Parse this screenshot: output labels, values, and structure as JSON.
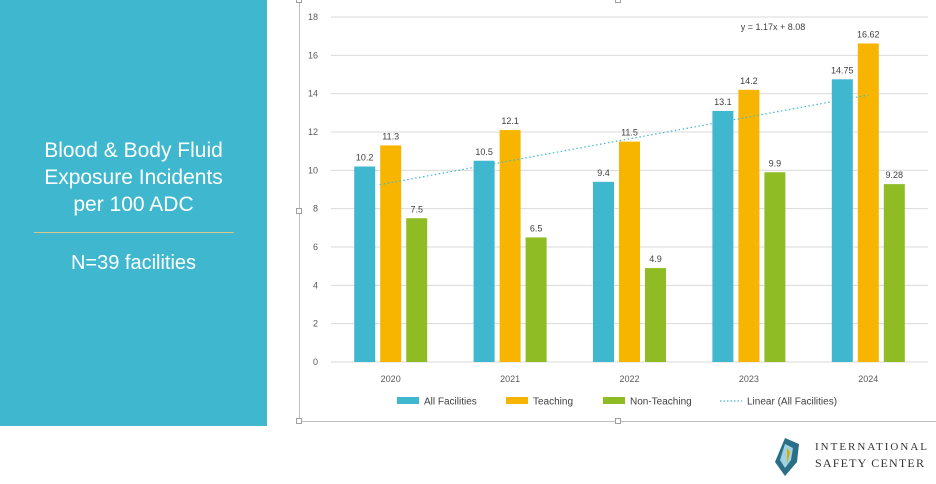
{
  "panel": {
    "title": "Blood & Body Fluid\nExposure Incidents\nper 100 ADC",
    "subtitle": "N=39 facilities"
  },
  "logo": {
    "line1": "INTERNATIONAL",
    "line2": "SAFETY CENTER",
    "icon": "shield-logo-icon"
  },
  "colors": {
    "panel": "#3fb8cf",
    "all": "#3fb8cf",
    "teaching": "#f7b500",
    "nonteaching": "#8fbc24",
    "trend": "#3fb8cf"
  },
  "chart_data": {
    "type": "bar",
    "categories": [
      "2020",
      "2021",
      "2022",
      "2023",
      "2024"
    ],
    "series": [
      {
        "name": "All Facilities",
        "values": [
          10.2,
          10.5,
          9.4,
          13.1,
          14.75
        ],
        "labels": [
          "10.2",
          "10.5",
          "9.4",
          "13.1",
          "14.75"
        ]
      },
      {
        "name": "Teaching",
        "values": [
          11.3,
          12.1,
          11.5,
          14.2,
          16.62
        ],
        "labels": [
          "11.3",
          "12.1",
          "11.5",
          "14.2",
          "16.62"
        ]
      },
      {
        "name": "Non-Teaching",
        "values": [
          7.5,
          6.5,
          4.9,
          9.9,
          9.28
        ],
        "labels": [
          "7.5",
          "6.5",
          "4.9",
          "9.9",
          "9.28"
        ]
      }
    ],
    "trendline": {
      "name": "Linear (All Facilities)",
      "equation": "y = 1.17x + 8.08",
      "slope": 1.17,
      "intercept": 8.08
    },
    "ylim": [
      0,
      18
    ],
    "yticks": [
      "0",
      "2",
      "4",
      "6",
      "8",
      "10",
      "12",
      "14",
      "16",
      "18"
    ],
    "grid": true,
    "legend_position": "bottom"
  }
}
